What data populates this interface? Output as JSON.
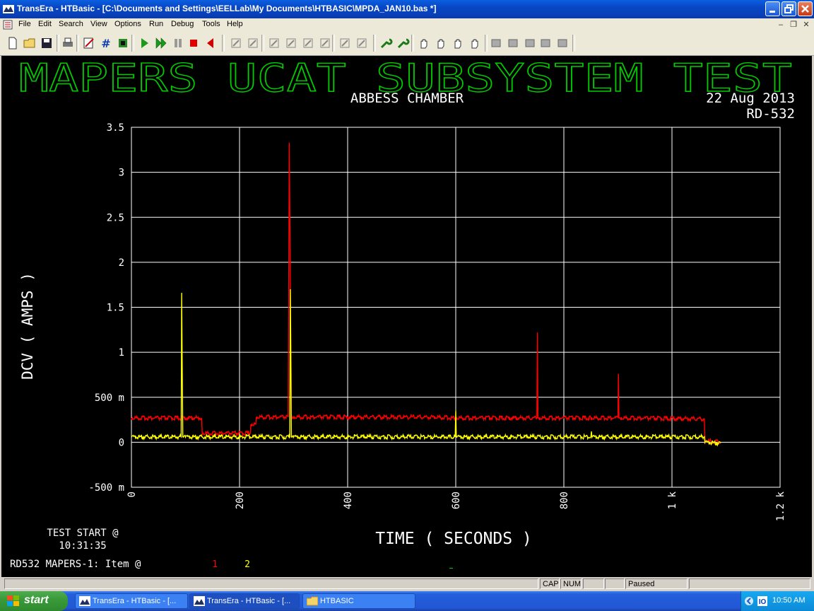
{
  "window": {
    "title": "TransEra - HTBasic - [C:\\Documents and Settings\\EELLab\\My Documents\\HTBASIC\\MPDA_JAN10.bas *]"
  },
  "menu": [
    "File",
    "Edit",
    "Search",
    "View",
    "Options",
    "Run",
    "Debug",
    "Tools",
    "Help"
  ],
  "toolbar": {
    "icons": [
      "new-file-icon",
      "open-folder-icon",
      "save-icon",
      "print-icon",
      "edit-icon",
      "hash-icon",
      "chip-icon",
      "run-icon",
      "continue-icon",
      "pause-icon",
      "stop-icon",
      "step-back-icon",
      "binoculars-icon",
      "find-replace-icon",
      "breakpoint-icon",
      "tool-a-icon",
      "tool-b-icon",
      "tool-c-icon",
      "check-a-icon",
      "check-b-icon",
      "wrench-icon",
      "wrench-star-icon",
      "hand-icon",
      "hand-x-icon",
      "hand-question-icon",
      "hand-globe-icon",
      "macro-a-icon",
      "macro-b-icon",
      "macro-c-icon",
      "macro-d-icon",
      "macro-e-icon"
    ]
  },
  "screen": {
    "heading": "MAPERS UCAT SUBSYSTEM TEST",
    "subheading": "ABBESS CHAMBER",
    "date": "22 Aug 2013",
    "unit": "RD-532",
    "test_start_label": "TEST START @",
    "test_start_time": "10:31:35",
    "item_label": "RD532 MAPERS-1: Item @",
    "item_1": "1",
    "item_2": "2",
    "colors": {
      "heading": "#00cc00",
      "text": "#ffffff",
      "grid": "#ffffff",
      "series_1": "#ff0000",
      "series_2": "#ffff00"
    }
  },
  "chart_data": {
    "type": "line",
    "xlabel": "TIME ( SECONDS )",
    "ylabel": "DCV ( AMPS )",
    "xlim": [
      0,
      1200
    ],
    "ylim": [
      -0.5,
      3.5
    ],
    "x_ticks": [
      "0",
      "200",
      "400",
      "600",
      "800",
      "1 k",
      "1.2 k"
    ],
    "y_ticks": [
      "-500 m",
      "0",
      "500 m",
      "1",
      "1.5",
      "2",
      "2.5",
      "3",
      "3.5"
    ],
    "grid": true,
    "series": [
      {
        "name": "1",
        "color": "#ff0000",
        "x": [
          0,
          130,
          131,
          220,
          221,
          230,
          231,
          290,
          292,
          294,
          296,
          300,
          560,
          600,
          750,
          751,
          752,
          753,
          754,
          850,
          900,
          901,
          902,
          903,
          905,
          1060,
          1061,
          1090
        ],
        "y": [
          0.27,
          0.27,
          0.1,
          0.1,
          0.2,
          0.2,
          0.28,
          0.28,
          3.33,
          1.8,
          0.28,
          0.28,
          0.28,
          0.27,
          0.27,
          1.22,
          0.27,
          0.27,
          0.27,
          0.27,
          0.27,
          0.76,
          0.27,
          0.27,
          0.27,
          0.26,
          0.02,
          0.0
        ]
      },
      {
        "name": "2",
        "color": "#ffff00",
        "x": [
          0,
          92,
          93,
          94,
          95,
          96,
          100,
          293,
          294,
          295,
          296,
          297,
          300,
          599,
          600,
          601,
          602,
          850,
          851,
          852,
          1060,
          1061,
          1090
        ],
        "y": [
          0.06,
          0.06,
          1.66,
          0.85,
          0.06,
          0.06,
          0.06,
          0.06,
          1.7,
          0.85,
          0.06,
          0.06,
          0.06,
          0.06,
          0.35,
          0.06,
          0.06,
          0.06,
          0.12,
          0.06,
          0.06,
          0.0,
          -0.01
        ]
      }
    ]
  },
  "statusbar": {
    "cap": "CAP",
    "num": "NUM",
    "status": "Paused"
  },
  "taskbar": {
    "start": "start",
    "tasks": [
      "TransEra - HTBasic - [...",
      "TransEra - HTBasic - [...",
      "HTBASIC"
    ],
    "clock": "10:50 AM"
  }
}
